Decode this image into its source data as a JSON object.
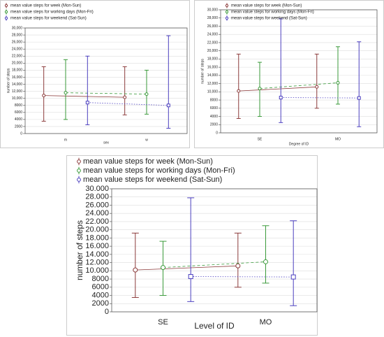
{
  "chart_data": [
    {
      "type": "errorbar",
      "xlabel": "sex",
      "ylabel": "number of steps",
      "categories": [
        "m",
        "w"
      ],
      "ylim": [
        0,
        30000
      ],
      "grid": true,
      "yticks": [
        0,
        2000,
        4000,
        6000,
        8000,
        {
          "value": 10000,
          "label": "10,000"
        },
        {
          "value": 12000,
          "label": "12,000"
        },
        {
          "value": 14000,
          "label": "14,000"
        },
        {
          "value": 16000,
          "label": "16,000"
        },
        {
          "value": 18000,
          "label": "18,000"
        },
        {
          "value": 20000,
          "label": "20,000"
        },
        {
          "value": 22000,
          "label": "22,000"
        },
        {
          "value": 24000,
          "label": "24,000"
        },
        {
          "value": 26000,
          "label": "26,000"
        },
        {
          "value": 28000,
          "label": "28,000"
        },
        {
          "value": 30000,
          "label": "30,000"
        }
      ],
      "series": [
        {
          "name": "mean value steps for week (Mon-Sun)",
          "color": "#8b3a3a",
          "line_style": "solid",
          "marker": "circle",
          "values": [
            10800,
            10300
          ],
          "low": [
            3500,
            5300
          ],
          "high": [
            19000,
            19000
          ]
        },
        {
          "name": "mean value steps for working days (Mon-Fri)",
          "color": "#3a9a3a",
          "line_style": "dashed",
          "marker": "circle",
          "values": [
            11600,
            11200
          ],
          "low": [
            4000,
            5500
          ],
          "high": [
            21000,
            18000
          ]
        },
        {
          "name": "mean value steps for weekend (Sat-Sun)",
          "color": "#4b3fbf",
          "line_style": "dotted",
          "marker": "square",
          "values": [
            8800,
            8000
          ],
          "low": [
            2500,
            1500
          ],
          "high": [
            22000,
            27800
          ]
        }
      ]
    },
    {
      "type": "errorbar",
      "xlabel": "Degree of ID",
      "ylabel": "number of steps",
      "categories": [
        "SE",
        "MO"
      ],
      "ylim": [
        0,
        30000
      ],
      "grid": true,
      "yticks": [
        0,
        2000,
        4000,
        6000,
        8000,
        {
          "value": 10000,
          "label": "10,000"
        },
        {
          "value": 12000,
          "label": "12,000"
        },
        {
          "value": 14000,
          "label": "14,000"
        },
        {
          "value": 16000,
          "label": "16,000"
        },
        {
          "value": 18000,
          "label": "18,000"
        },
        {
          "value": 20000,
          "label": "20,000"
        },
        {
          "value": 22000,
          "label": "22,000"
        },
        {
          "value": 24000,
          "label": "24,000"
        },
        {
          "value": 26000,
          "label": "26,000"
        },
        {
          "value": 28000,
          "label": "28,000"
        },
        {
          "value": 30000,
          "label": "30,000"
        }
      ],
      "series": [
        {
          "name": "mean value steps for week (Mon-Sun)",
          "color": "#8b3a3a",
          "line_style": "solid",
          "marker": "circle",
          "values": [
            10200,
            11200
          ],
          "low": [
            3500,
            6000
          ],
          "high": [
            19200,
            19200
          ]
        },
        {
          "name": "mean value steps for working days (Mon-Fri)",
          "color": "#3a9a3a",
          "line_style": "dashed",
          "marker": "circle",
          "values": [
            10800,
            12200
          ],
          "low": [
            4000,
            7000
          ],
          "high": [
            17200,
            21000
          ]
        },
        {
          "name": "mean value steps for weekend (Sat-Sun)",
          "color": "#4b3fbf",
          "line_style": "dotted",
          "marker": "square",
          "values": [
            8600,
            8500
          ],
          "low": [
            2500,
            1500
          ],
          "high": [
            27800,
            22200
          ]
        }
      ]
    },
    {
      "type": "errorbar",
      "xlabel": "Level of ID",
      "ylabel": "number of steps",
      "categories": [
        "SE",
        "MO"
      ],
      "ylim": [
        0,
        30000
      ],
      "grid": true,
      "yticks": [
        0,
        2000,
        4000,
        6000,
        8000,
        {
          "value": 10000,
          "label": "10.000"
        },
        {
          "value": 12000,
          "label": "12.000"
        },
        {
          "value": 14000,
          "label": "14.000"
        },
        {
          "value": 16000,
          "label": "16.000"
        },
        {
          "value": 18000,
          "label": "18.000"
        },
        {
          "value": 20000,
          "label": "20.000"
        },
        {
          "value": 22000,
          "label": "22.000"
        },
        {
          "value": 24000,
          "label": "24.000"
        },
        {
          "value": 26000,
          "label": "26.000"
        },
        {
          "value": 28000,
          "label": "28.000"
        },
        {
          "value": 30000,
          "label": "30.000"
        }
      ],
      "series": [
        {
          "name": "mean value steps for week (Mon-Sun)",
          "color": "#8b3a3a",
          "line_style": "solid",
          "marker": "circle",
          "values": [
            10200,
            11200
          ],
          "low": [
            3500,
            6000
          ],
          "high": [
            19200,
            19200
          ]
        },
        {
          "name": "mean value steps for working days (Mon-Fri)",
          "color": "#3a9a3a",
          "line_style": "dashed",
          "marker": "circle",
          "values": [
            10800,
            12200
          ],
          "low": [
            4000,
            7000
          ],
          "high": [
            17200,
            21000
          ]
        },
        {
          "name": "mean value steps for weekend (Sat-Sun)",
          "color": "#4b3fbf",
          "line_style": "dotted",
          "marker": "square",
          "values": [
            8600,
            8500
          ],
          "low": [
            2500,
            1500
          ],
          "high": [
            27800,
            22200
          ]
        }
      ]
    }
  ]
}
